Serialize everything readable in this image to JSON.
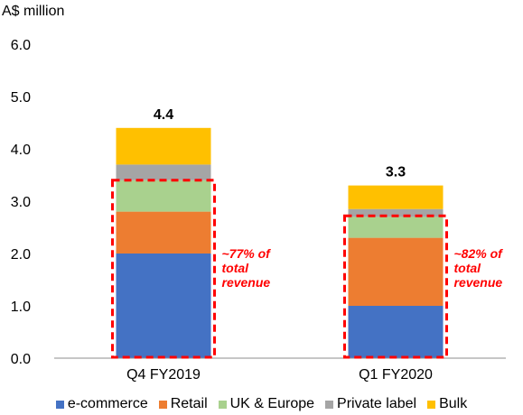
{
  "chart_data": {
    "type": "bar",
    "stacked": true,
    "ylabel": "A$ million",
    "ylim": [
      0,
      6
    ],
    "yticks": [
      "0.0",
      "1.0",
      "2.0",
      "3.0",
      "4.0",
      "5.0",
      "6.0"
    ],
    "categories": [
      "Q4 FY2019",
      "Q1 FY2020"
    ],
    "totals": [
      "4.4",
      "3.3"
    ],
    "series": [
      {
        "name": "e-commerce",
        "color": "#4472C4",
        "values": [
          2.0,
          1.0
        ]
      },
      {
        "name": "Retail",
        "color": "#ED7D31",
        "values": [
          0.8,
          1.3
        ]
      },
      {
        "name": "UK & Europe",
        "color": "#A9D18E",
        "values": [
          0.6,
          0.4
        ]
      },
      {
        "name": "Private label",
        "color": "#A5A5A5",
        "values": [
          0.3,
          0.15
        ]
      },
      {
        "name": "Bulk",
        "color": "#FFC000",
        "values": [
          0.7,
          0.45
        ]
      }
    ],
    "annotations": [
      {
        "category": "Q4 FY2019",
        "box_top_value": 3.4,
        "lines": [
          "~77% of",
          "total",
          "revenue"
        ]
      },
      {
        "category": "Q1 FY2020",
        "box_top_value": 2.72,
        "lines": [
          "~82% of",
          "total",
          "revenue"
        ]
      }
    ],
    "annotation_color": "#FF0000",
    "grid": false,
    "legend_position": "bottom"
  }
}
